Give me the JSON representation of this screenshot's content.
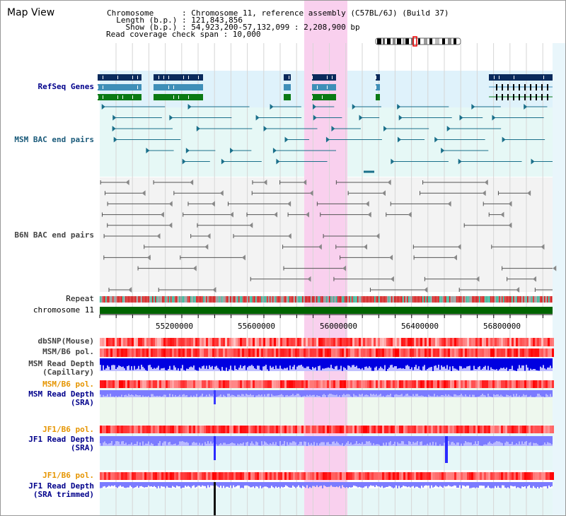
{
  "title": "Map View",
  "info": {
    "chromosome": "Chromosome      : Chromosome 11, reference assembly (C57BL/6J) (Build 37)",
    "length": "  Length (b.p.) : 121,843,856",
    "show": "    Show (b.p.) : 54,923,200-57,132,099 : 2,208,900 bp",
    "read_coverage": "Read coverage check span : 10,000"
  },
  "tracks": {
    "refseq": "RefSeq Genes",
    "msm_bac": "MSM BAC end pairs",
    "b6n_bac": "B6N BAC end pairs",
    "repeat": "Repeat",
    "chromosome": "chromosome 11",
    "dbsnp": "dbSNP(Mouse)",
    "msm_b6_pol_1": "MSM/B6 pol.",
    "msm_read_depth_cap": "MSM Read Depth\n(Capillary)",
    "msm_b6_pol_2": "MSM/B6 pol.",
    "msm_read_depth_sra": "MSM Read Depth\n(SRA)",
    "jf1_b6_pol_1": "JF1/B6 pol.",
    "jf1_read_depth_sra": "JF1 Read Depth\n(SRA)",
    "jf1_b6_pol_2": "JF1/B6 pol.",
    "jf1_read_depth_trim": "JF1 Read Depth\n(SRA trimmed)"
  },
  "axis_ticks": [
    "55200000",
    "55600000",
    "56000000",
    "56400000",
    "56800000"
  ],
  "colors": {
    "highlight": "#f9d0ee",
    "refseq_bg": "#dff2fb",
    "bac_bg": "#e6f8f6",
    "gene_dark": "#0a2a5c",
    "gene_mid": "#3f8fb8",
    "gene_green": "#0a7a14",
    "chromosome_bar": "#006400",
    "depth_blue": "#0000e0",
    "depth_light": "#7b7bff",
    "pol_red": "#ff0000"
  }
}
